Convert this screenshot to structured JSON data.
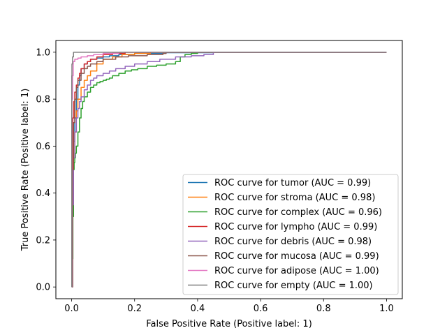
{
  "chart_data": {
    "type": "line",
    "title": "",
    "xlabel": "False Positive Rate (Positive label: 1)",
    "ylabel": "True Positive Rate (Positive label: 1)",
    "xlim": [
      -0.05,
      1.05
    ],
    "ylim": [
      -0.05,
      1.05
    ],
    "xticks": [
      0.0,
      0.2,
      0.4,
      0.6,
      0.8,
      1.0
    ],
    "yticks": [
      0.0,
      0.2,
      0.4,
      0.6,
      0.8,
      1.0
    ],
    "tick_labels": [
      "0.0",
      "0.2",
      "0.4",
      "0.6",
      "0.8",
      "1.0"
    ],
    "grid": false,
    "legend_position": "lower-right",
    "series": [
      {
        "name": "ROC curve for tumor (AUC = 0.99)",
        "color": "#1f77b4",
        "x": [
          0,
          0.003,
          0.006,
          0.01,
          0.015,
          0.02,
          0.025,
          0.03,
          0.04,
          0.05,
          0.06,
          0.08,
          0.1,
          0.12,
          0.15,
          0.2,
          0.3,
          0.45,
          1.0
        ],
        "y": [
          0,
          0.45,
          0.62,
          0.72,
          0.8,
          0.86,
          0.9,
          0.93,
          0.95,
          0.96,
          0.97,
          0.975,
          0.98,
          0.985,
          0.99,
          0.995,
          0.998,
          1.0,
          1.0
        ]
      },
      {
        "name": "ROC curve for stroma (AUC = 0.98)",
        "color": "#ff7f0e",
        "x": [
          0,
          0.003,
          0.006,
          0.01,
          0.015,
          0.02,
          0.03,
          0.04,
          0.05,
          0.06,
          0.08,
          0.1,
          0.13,
          0.16,
          0.2,
          0.25,
          1.0
        ],
        "y": [
          0,
          0.4,
          0.55,
          0.66,
          0.75,
          0.8,
          0.85,
          0.88,
          0.9,
          0.92,
          0.95,
          0.97,
          0.98,
          0.99,
          0.995,
          1.0,
          1.0
        ]
      },
      {
        "name": "ROC curve for complex (AUC = 0.96)",
        "color": "#2ca02c",
        "x": [
          0,
          0.002,
          0.004,
          0.006,
          0.008,
          0.01,
          0.012,
          0.015,
          0.02,
          0.025,
          0.03,
          0.035,
          0.04,
          0.05,
          0.06,
          0.07,
          0.08,
          0.09,
          0.1,
          0.11,
          0.12,
          0.13,
          0.15,
          0.17,
          0.19,
          0.21,
          0.24,
          0.27,
          0.3,
          0.33,
          0.345,
          0.36,
          0.38,
          0.4,
          1.0
        ],
        "y": [
          0,
          0.12,
          0.3,
          0.5,
          0.53,
          0.55,
          0.57,
          0.6,
          0.66,
          0.72,
          0.76,
          0.79,
          0.81,
          0.83,
          0.85,
          0.86,
          0.87,
          0.875,
          0.88,
          0.885,
          0.89,
          0.9,
          0.91,
          0.92,
          0.925,
          0.93,
          0.94,
          0.945,
          0.95,
          0.96,
          0.98,
          0.99,
          0.995,
          1.0,
          1.0
        ]
      },
      {
        "name": "ROC curve for lympho (AUC = 0.99)",
        "color": "#d62728",
        "x": [
          0,
          0.002,
          0.004,
          0.007,
          0.01,
          0.015,
          0.02,
          0.025,
          0.03,
          0.04,
          0.05,
          0.06,
          0.08,
          0.1,
          0.13,
          0.17,
          1.0
        ],
        "y": [
          0,
          0.5,
          0.72,
          0.79,
          0.83,
          0.86,
          0.89,
          0.91,
          0.93,
          0.95,
          0.96,
          0.97,
          0.98,
          0.99,
          0.995,
          1.0,
          1.0
        ]
      },
      {
        "name": "ROC curve for debris (AUC = 0.98)",
        "color": "#9467bd",
        "x": [
          0,
          0.003,
          0.006,
          0.01,
          0.015,
          0.02,
          0.025,
          0.03,
          0.04,
          0.05,
          0.06,
          0.07,
          0.08,
          0.1,
          0.12,
          0.14,
          0.17,
          0.2,
          0.24,
          0.28,
          0.33,
          0.38,
          0.42,
          0.45,
          1.0
        ],
        "y": [
          0,
          0.35,
          0.55,
          0.66,
          0.72,
          0.76,
          0.79,
          0.81,
          0.84,
          0.86,
          0.88,
          0.89,
          0.9,
          0.91,
          0.92,
          0.93,
          0.94,
          0.95,
          0.96,
          0.97,
          0.98,
          0.985,
          0.99,
          1.0,
          1.0
        ]
      },
      {
        "name": "ROC curve for mucosa (AUC = 0.99)",
        "color": "#8c564b",
        "x": [
          0,
          0.003,
          0.006,
          0.01,
          0.015,
          0.02,
          0.03,
          0.04,
          0.05,
          0.06,
          0.08,
          0.1,
          0.14,
          0.18,
          0.24,
          0.29,
          0.3,
          1.0
        ],
        "y": [
          0,
          0.5,
          0.7,
          0.8,
          0.85,
          0.88,
          0.91,
          0.93,
          0.94,
          0.95,
          0.96,
          0.97,
          0.98,
          0.985,
          0.99,
          0.995,
          1.0,
          1.0
        ]
      },
      {
        "name": "ROC curve for adipose (AUC = 1.00)",
        "color": "#e377c2",
        "x": [
          0,
          0.001,
          0.003,
          0.005,
          0.01,
          0.02,
          0.03,
          0.05,
          0.07,
          0.1,
          0.15,
          1.0
        ],
        "y": [
          0,
          0.8,
          0.9,
          0.96,
          0.97,
          0.975,
          0.98,
          0.985,
          0.99,
          0.995,
          1.0,
          1.0
        ]
      },
      {
        "name": "ROC curve for empty (AUC = 1.00)",
        "color": "#7f7f7f",
        "x": [
          0,
          0.0005,
          0.001,
          0.003,
          0.006,
          1.0
        ],
        "y": [
          0,
          0.9,
          0.95,
          0.98,
          1.0,
          1.0
        ]
      }
    ]
  }
}
